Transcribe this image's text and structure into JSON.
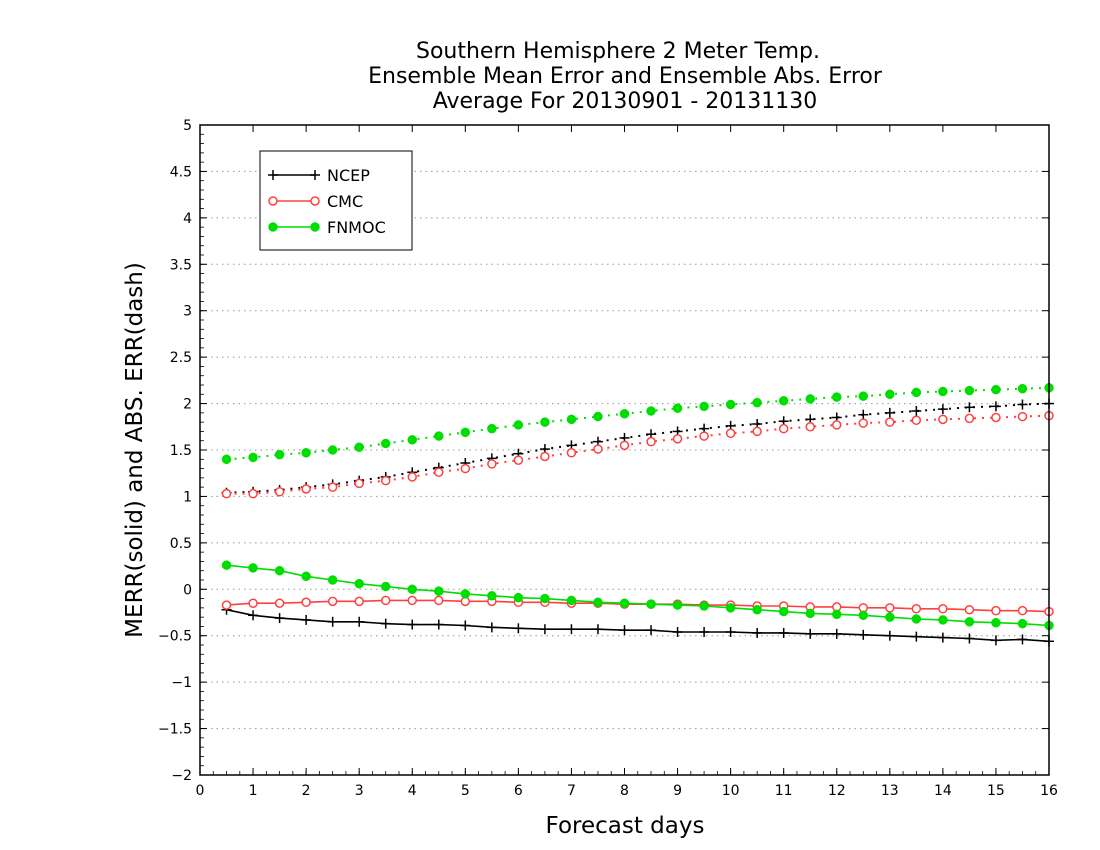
{
  "chart_data": {
    "type": "line",
    "title_lines": [
      "Southern Hemisphere 2 Meter Temp.",
      "Ensemble Mean Error and Ensemble Abs. Error",
      "Average For 20130901 - 20131130"
    ],
    "xlabel": "Forecast days",
    "ylabel": "MERR(solid) and ABS. ERR(dash)",
    "xlim": [
      0,
      16
    ],
    "ylim": [
      -2,
      5
    ],
    "x_ticks": [
      0,
      1,
      2,
      3,
      4,
      5,
      6,
      7,
      8,
      9,
      10,
      11,
      12,
      13,
      14,
      15,
      16
    ],
    "y_ticks": [
      -2,
      -1.5,
      -1,
      -0.5,
      0,
      0.5,
      1,
      1.5,
      2,
      2.5,
      3,
      3.5,
      4,
      4.5,
      5
    ],
    "x_tick_labels": [
      "0",
      "1",
      "2",
      "3",
      "4",
      "5",
      "6",
      "7",
      "8",
      "9",
      "10",
      "11",
      "12",
      "13",
      "14",
      "15",
      "16"
    ],
    "y_tick_labels": [
      "−2",
      "−1.5",
      "−1",
      "−0.5",
      "0",
      "0.5",
      "1",
      "1.5",
      "2",
      "2.5",
      "3",
      "3.5",
      "4",
      "4.5",
      "5"
    ],
    "grid": "horizontal-dotted",
    "legend_position": "top-left",
    "x": [
      0.5,
      1,
      1.5,
      2,
      2.5,
      3,
      3.5,
      4,
      4.5,
      5,
      5.5,
      6,
      6.5,
      7,
      7.5,
      8,
      8.5,
      9,
      9.5,
      10,
      10.5,
      11,
      11.5,
      12,
      12.5,
      13,
      13.5,
      14,
      14.5,
      15,
      15.5,
      16
    ],
    "series": [
      {
        "name": "NCEP",
        "color": "#000000",
        "marker": "plus",
        "mean_error": [
          -0.22,
          -0.28,
          -0.31,
          -0.33,
          -0.35,
          -0.35,
          -0.37,
          -0.38,
          -0.38,
          -0.39,
          -0.41,
          -0.42,
          -0.43,
          -0.43,
          -0.43,
          -0.44,
          -0.44,
          -0.46,
          -0.46,
          -0.46,
          -0.47,
          -0.47,
          -0.48,
          -0.48,
          -0.49,
          -0.5,
          -0.51,
          -0.52,
          -0.53,
          -0.55,
          -0.54,
          -0.56
        ],
        "abs_error": [
          1.04,
          1.05,
          1.07,
          1.1,
          1.13,
          1.17,
          1.21,
          1.26,
          1.31,
          1.36,
          1.41,
          1.46,
          1.51,
          1.55,
          1.59,
          1.63,
          1.67,
          1.7,
          1.73,
          1.76,
          1.78,
          1.81,
          1.83,
          1.85,
          1.88,
          1.9,
          1.92,
          1.94,
          1.96,
          1.97,
          1.99,
          2.0
        ]
      },
      {
        "name": "CMC",
        "color": "#ff4040",
        "marker": "circle-open",
        "mean_error": [
          -0.17,
          -0.15,
          -0.15,
          -0.14,
          -0.13,
          -0.13,
          -0.12,
          -0.12,
          -0.12,
          -0.13,
          -0.13,
          -0.14,
          -0.14,
          -0.15,
          -0.15,
          -0.16,
          -0.16,
          -0.16,
          -0.17,
          -0.17,
          -0.18,
          -0.18,
          -0.19,
          -0.19,
          -0.2,
          -0.2,
          -0.21,
          -0.21,
          -0.22,
          -0.23,
          -0.23,
          -0.24
        ],
        "abs_error": [
          1.03,
          1.03,
          1.05,
          1.08,
          1.1,
          1.14,
          1.17,
          1.21,
          1.26,
          1.3,
          1.35,
          1.39,
          1.43,
          1.47,
          1.51,
          1.55,
          1.59,
          1.62,
          1.65,
          1.68,
          1.7,
          1.73,
          1.75,
          1.77,
          1.79,
          1.8,
          1.82,
          1.83,
          1.84,
          1.85,
          1.86,
          1.87
        ]
      },
      {
        "name": "FNMOC",
        "color": "#00dd00",
        "marker": "circle-filled",
        "mean_error": [
          0.26,
          0.23,
          0.2,
          0.14,
          0.1,
          0.06,
          0.03,
          0.0,
          -0.02,
          -0.05,
          -0.07,
          -0.09,
          -0.1,
          -0.12,
          -0.14,
          -0.15,
          -0.16,
          -0.17,
          -0.18,
          -0.2,
          -0.22,
          -0.24,
          -0.26,
          -0.27,
          -0.28,
          -0.3,
          -0.32,
          -0.33,
          -0.35,
          -0.36,
          -0.37,
          -0.39
        ],
        "abs_error": [
          1.4,
          1.42,
          1.45,
          1.47,
          1.5,
          1.53,
          1.57,
          1.61,
          1.65,
          1.69,
          1.73,
          1.77,
          1.8,
          1.83,
          1.86,
          1.89,
          1.92,
          1.95,
          1.97,
          1.99,
          2.01,
          2.03,
          2.05,
          2.07,
          2.08,
          2.1,
          2.12,
          2.13,
          2.14,
          2.15,
          2.16,
          2.17
        ]
      }
    ]
  }
}
